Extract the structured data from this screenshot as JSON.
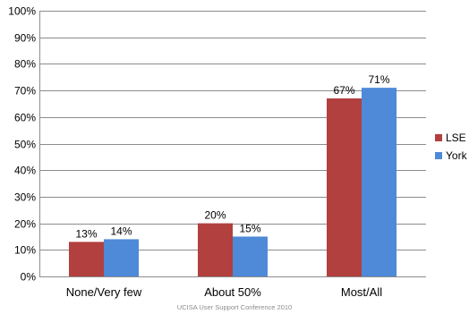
{
  "chart_data": {
    "type": "bar",
    "categories": [
      "None/Very few",
      "About 50%",
      "Most/All"
    ],
    "series": [
      {
        "name": "LSE",
        "values": [
          13,
          20,
          67
        ],
        "labels": [
          "13%",
          "20%",
          "67%"
        ],
        "color": "#b2403e"
      },
      {
        "name": "York",
        "values": [
          14,
          15,
          71
        ],
        "labels": [
          "14%",
          "15%",
          "71%"
        ],
        "color": "#4e8ad8"
      }
    ],
    "y_ticks": [
      "0%",
      "10%",
      "20%",
      "30%",
      "40%",
      "50%",
      "60%",
      "70%",
      "80%",
      "90%",
      "100%"
    ],
    "ylim": [
      0,
      100
    ],
    "grid": true,
    "legend_position": "right",
    "title": "",
    "xlabel": "",
    "ylabel": ""
  },
  "footer": "UCISA User Support Conference 2010",
  "colors": {
    "grid": "#8c8c8c",
    "axis": "#8c8c8c"
  }
}
